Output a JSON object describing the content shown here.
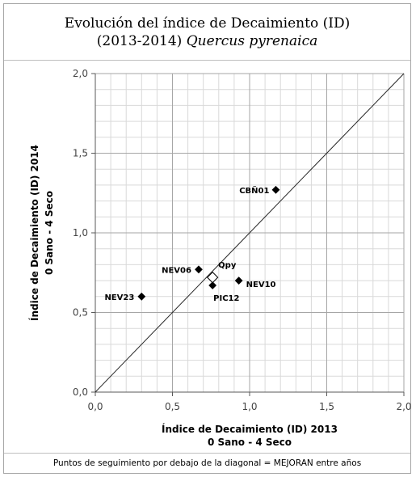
{
  "title": {
    "line1": "Evolución del índice de Decaimiento (ID)",
    "line2_prefix": "(2013-2014) ",
    "line2_species": "Quercus pyrenaica"
  },
  "footer": "Puntos de seguimiento por debajo de la diagonal = MEJORAN entre años",
  "chart_data": {
    "type": "scatter",
    "xlabel_line1": "Índice de Decaimiento (ID) 2013",
    "xlabel_line2": "0 Sano - 4 Seco",
    "ylabel_line1": "Índice de Decaimiento (ID) 2014",
    "ylabel_line2": "0 Sano - 4 Seco",
    "xlim": [
      0,
      2
    ],
    "ylim": [
      0,
      2
    ],
    "x_ticks": [
      "0,0",
      "0,5",
      "1,0",
      "1,5",
      "2,0"
    ],
    "y_ticks": [
      "0,0",
      "0,5",
      "1,0",
      "1,5",
      "2,0"
    ],
    "grid": true,
    "diagonal": true,
    "points": [
      {
        "label": "CBÑ01",
        "x": 1.17,
        "y": 1.27,
        "marker": "diamond-filled"
      },
      {
        "label": "NEV06",
        "x": 0.67,
        "y": 0.77,
        "marker": "diamond-filled"
      },
      {
        "label": "NEV10",
        "x": 0.93,
        "y": 0.7,
        "marker": "diamond-filled"
      },
      {
        "label": "PIC12",
        "x": 0.76,
        "y": 0.67,
        "marker": "diamond-filled"
      },
      {
        "label": "NEV23",
        "x": 0.3,
        "y": 0.6,
        "marker": "diamond-filled"
      },
      {
        "label": "Qpy",
        "x": 0.76,
        "y": 0.72,
        "marker": "diamond-open"
      }
    ]
  }
}
